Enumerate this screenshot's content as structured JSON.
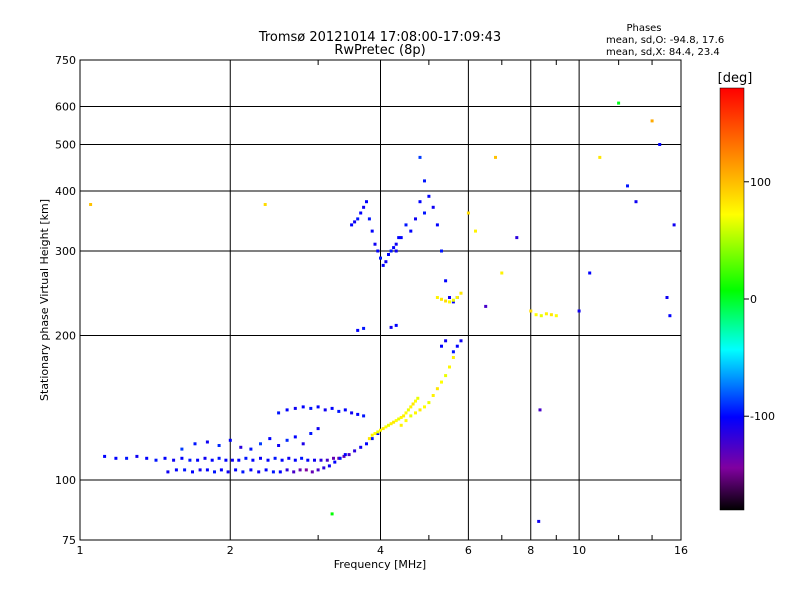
{
  "chart_data": {
    "type": "scatter",
    "title": "Tromsø 20121014 17:08:00-17:09:43",
    "subtitle": "RwPretec (8p)",
    "xlabel": "Frequency [MHz]",
    "ylabel": "Stationary phase Virtual Height [km]",
    "x_scale": "log",
    "y_scale": "log",
    "xlim": [
      1,
      16
    ],
    "ylim": [
      75,
      750
    ],
    "x_ticks": [
      1,
      2,
      4,
      6,
      8,
      10,
      16
    ],
    "y_ticks": [
      75,
      100,
      200,
      300,
      400,
      500,
      600,
      750
    ],
    "grid": true,
    "annotation": {
      "heading": "Phases",
      "line1": "mean, sd,O: -94.8, 17.6",
      "line2": "mean, sd,X:  84.4, 23.4"
    },
    "colorbar": {
      "label": "[deg]",
      "range": [
        -180,
        180
      ],
      "ticks": [
        100,
        0,
        -100
      ]
    },
    "series": [
      {
        "x": [
          1.12,
          1.18,
          1.24,
          1.3,
          1.36,
          1.42,
          1.48,
          1.54,
          1.6,
          1.66,
          1.72,
          1.78,
          1.84,
          1.9,
          1.96,
          2.02,
          2.08,
          2.15,
          2.22,
          2.3,
          2.38,
          2.46,
          2.54,
          2.62,
          2.7,
          2.78,
          2.86,
          2.95,
          3.04,
          3.13,
          3.22,
          3.3,
          3.38,
          3.46,
          3.55,
          3.65,
          3.75,
          3.85,
          3.95
        ],
        "y": [
          112,
          111,
          111,
          112,
          111,
          110,
          111,
          110,
          111,
          110,
          110,
          111,
          110,
          111,
          110,
          110,
          110,
          111,
          110,
          111,
          110,
          111,
          110,
          111,
          110,
          111,
          110,
          110,
          110,
          110,
          111,
          111,
          112,
          113,
          115,
          117,
          119,
          122,
          125
        ],
        "phase": [
          -95,
          -95,
          -90,
          -100,
          -95,
          -90,
          -95,
          -100,
          -95,
          -90,
          -95,
          -100,
          -95,
          -90,
          -95,
          -100,
          -95,
          -90,
          -95,
          -100,
          -95,
          -90,
          -95,
          -100,
          -95,
          -90,
          -95,
          -100,
          -110,
          -120,
          -130,
          -140,
          -130,
          -120,
          -110,
          -100,
          -95,
          -90,
          -95
        ]
      },
      {
        "x": [
          1.5,
          1.56,
          1.62,
          1.68,
          1.74,
          1.8,
          1.86,
          1.92,
          1.98,
          2.05,
          2.12,
          2.2,
          2.28,
          2.36,
          2.44,
          2.52,
          2.6,
          2.68,
          2.76,
          2.84,
          2.92,
          3.0,
          3.08,
          3.16,
          3.24,
          3.32,
          3.4
        ],
        "y": [
          104,
          105,
          105,
          104,
          105,
          105,
          104,
          105,
          104,
          105,
          104,
          105,
          104,
          105,
          104,
          104,
          105,
          104,
          105,
          105,
          104,
          105,
          106,
          107,
          109,
          111,
          113
        ],
        "phase": [
          -100,
          -95,
          -90,
          -95,
          -100,
          -95,
          -90,
          -95,
          -100,
          -95,
          -90,
          -95,
          -100,
          -95,
          -90,
          -95,
          -110,
          -120,
          -130,
          -140,
          -130,
          -120,
          -110,
          -100,
          -95,
          -90,
          -95
        ]
      },
      {
        "x": [
          2.5,
          2.6,
          2.7,
          2.8,
          2.9,
          3.0,
          3.1,
          3.2,
          3.3,
          3.4,
          3.5,
          3.6,
          3.7
        ],
        "y": [
          138,
          140,
          141,
          142,
          141,
          142,
          140,
          141,
          139,
          140,
          138,
          137,
          136
        ],
        "phase": [
          -90,
          -95,
          -100,
          -95,
          -90,
          -95,
          -100,
          -95,
          -90,
          -95,
          -100,
          -95,
          -90
        ]
      },
      {
        "x": [
          1.6,
          1.7,
          1.8,
          1.9,
          2.0,
          2.1,
          2.2,
          2.3,
          2.4,
          2.5,
          2.6,
          2.7,
          2.8,
          2.9,
          3.0
        ],
        "y": [
          116,
          119,
          120,
          118,
          121,
          117,
          116,
          119,
          122,
          118,
          121,
          123,
          119,
          125,
          128
        ],
        "phase": [
          -80,
          -90,
          -100,
          -85,
          -95,
          -110,
          -90,
          -80,
          -95,
          -100,
          -85,
          -95,
          -105,
          -90,
          -100
        ]
      },
      {
        "x": [
          3.5,
          3.55,
          3.6,
          3.65,
          3.7,
          3.75,
          3.8,
          3.85,
          3.9,
          3.95,
          4.0,
          4.05,
          4.1,
          4.15,
          4.2,
          4.25,
          4.3,
          4.35
        ],
        "y": [
          340,
          345,
          350,
          360,
          370,
          380,
          350,
          330,
          310,
          300,
          290,
          280,
          285,
          295,
          300,
          305,
          310,
          320
        ],
        "phase": [
          -95,
          -100,
          -90,
          -95,
          -100,
          -95,
          -90,
          -95,
          -100,
          -95,
          -90,
          -95,
          -100,
          -95,
          -90,
          -95,
          -100,
          -95
        ]
      },
      {
        "x": [
          4.4,
          4.5,
          4.6,
          4.7,
          4.8,
          4.9,
          5.0,
          5.1,
          5.2,
          5.3,
          5.4,
          5.5,
          5.6
        ],
        "y": [
          130,
          133,
          136,
          138,
          140,
          142,
          145,
          150,
          155,
          160,
          165,
          172,
          180
        ],
        "phase": [
          90,
          85,
          80,
          88,
          92,
          85,
          80,
          90,
          95,
          85,
          80,
          88,
          92
        ]
      },
      {
        "x": [
          4.3,
          4.4,
          4.5,
          4.6,
          4.7,
          4.8,
          4.9,
          5.0,
          5.1,
          5.2,
          5.3,
          5.4,
          5.5,
          5.6,
          5.7
        ],
        "y": [
          300,
          320,
          340,
          330,
          350,
          380,
          360,
          390,
          370,
          340,
          300,
          260,
          240,
          235,
          240
        ],
        "phase": [
          -100,
          -95,
          -90,
          -95,
          -100,
          -95,
          -90,
          -95,
          -100,
          -95,
          -90,
          -95,
          -100,
          -95,
          -90
        ]
      },
      {
        "x": [
          5.2,
          5.3,
          5.4,
          5.5,
          5.6,
          5.7,
          5.8
        ],
        "y": [
          240,
          238,
          236,
          235,
          237,
          240,
          245
        ],
        "phase": [
          90,
          95,
          100,
          85,
          80,
          90,
          95
        ]
      },
      {
        "x": [
          3.6,
          3.7,
          4.2,
          4.3,
          4.8,
          4.9,
          5.3,
          5.4,
          5.6,
          5.7,
          5.8
        ],
        "y": [
          205,
          207,
          208,
          210,
          470,
          420,
          190,
          195,
          185,
          190,
          195
        ],
        "phase": [
          -95,
          -90,
          -100,
          -95,
          -80,
          -90,
          -95,
          -100,
          -90,
          -95,
          -100
        ]
      },
      {
        "x": [
          6.0,
          6.2,
          6.5,
          6.8,
          7.0,
          7.5,
          8.0,
          8.2,
          8.4,
          8.6,
          8.8,
          9.0,
          10.0,
          10.5,
          11.0,
          12.0,
          12.5,
          13.0,
          14.0,
          14.5,
          15.0,
          1.05,
          2.35,
          3.2,
          8.3,
          8.35,
          15.2,
          15.5
        ],
        "y": [
          360,
          330,
          230,
          470,
          270,
          320,
          225,
          221,
          220,
          222,
          221,
          220,
          225,
          270,
          470,
          610,
          410,
          380,
          560,
          500,
          240,
          375,
          375,
          85,
          82,
          140,
          220,
          340
        ],
        "phase": [
          100,
          90,
          -120,
          110,
          90,
          -110,
          100,
          85,
          80,
          90,
          95,
          85,
          -100,
          -95,
          95,
          15,
          -90,
          -100,
          120,
          -95,
          -100,
          110,
          100,
          20,
          -100,
          -120,
          -95,
          -100
        ]
      },
      {
        "x": [
          3.8,
          3.85,
          3.9,
          3.95,
          4.0,
          4.05,
          4.1,
          4.15,
          4.2,
          4.25,
          4.3,
          4.35,
          4.4,
          4.45,
          4.5,
          4.55,
          4.6,
          4.65,
          4.7,
          4.75
        ],
        "y": [
          122,
          124,
          125,
          126,
          127,
          128,
          129,
          130,
          131,
          132,
          133,
          134,
          135,
          136,
          138,
          140,
          142,
          144,
          146,
          148
        ],
        "phase": [
          95,
          90,
          85,
          80,
          88,
          92,
          85,
          80,
          90,
          95,
          85,
          80,
          88,
          92,
          85,
          80,
          90,
          95,
          85,
          80
        ]
      }
    ]
  }
}
